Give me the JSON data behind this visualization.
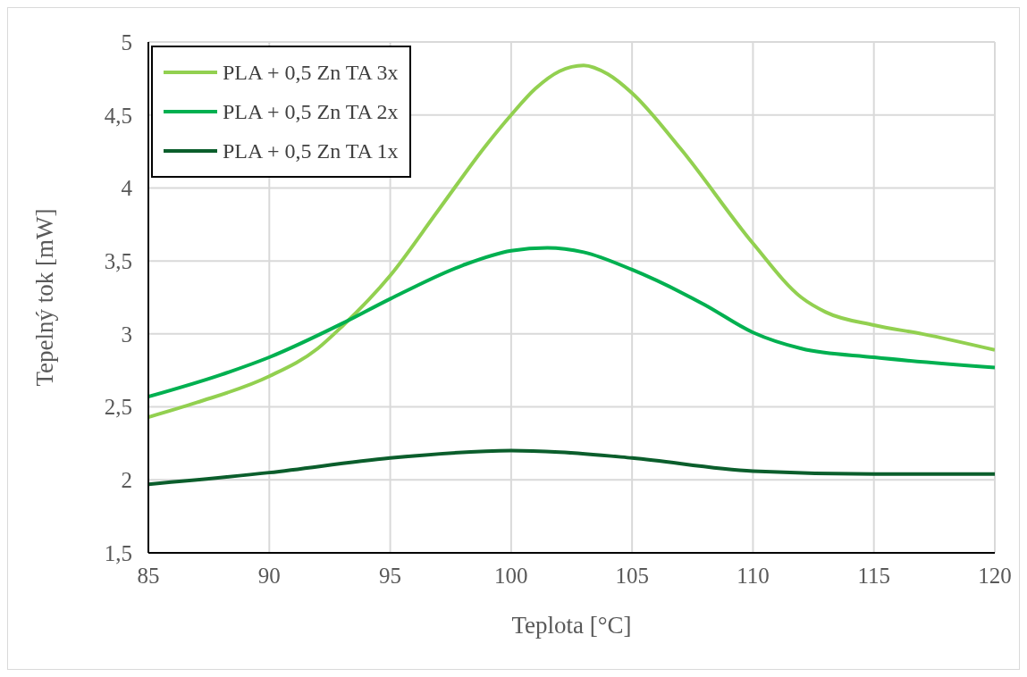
{
  "chart_data": {
    "type": "line",
    "xlabel": "Teplota [°C]",
    "ylabel": "Tepelný tok [mW]",
    "xlim": [
      85,
      120
    ],
    "xticks": [
      85,
      90,
      95,
      100,
      105,
      110,
      115,
      120
    ],
    "ylim": [
      1.5,
      5
    ],
    "yticks": [
      {
        "value": 1.5,
        "label": "1,5"
      },
      2,
      {
        "value": 2.5,
        "label": "2,5"
      },
      3,
      {
        "value": 3.5,
        "label": "3,5"
      },
      4,
      {
        "value": 4.5,
        "label": "4,5"
      },
      5
    ],
    "grid": true,
    "legend": "top left",
    "marker": "none",
    "line_style": "solid",
    "series": [
      {
        "name": "PLA + 0,5 Zn TA 3x",
        "color": "#92d050",
        "x": [
          85,
          87,
          90,
          92,
          93,
          95,
          97,
          99,
          100,
          101,
          102,
          103,
          104,
          105,
          107,
          110,
          112,
          113,
          115,
          117,
          120
        ],
        "values": [
          2.43,
          2.53,
          2.71,
          2.9,
          3.05,
          3.4,
          3.85,
          4.3,
          4.5,
          4.68,
          4.8,
          4.84,
          4.78,
          4.65,
          4.27,
          3.62,
          3.25,
          3.15,
          3.06,
          3.0,
          2.89
        ]
      },
      {
        "name": "PLA + 0,5 Zn TA 2x",
        "color": "#00b050",
        "x": [
          85,
          88,
          90,
          93,
          95,
          98,
          100,
          101.5,
          103,
          105,
          108,
          110,
          112,
          115,
          120
        ],
        "values": [
          2.57,
          2.72,
          2.84,
          3.07,
          3.24,
          3.47,
          3.57,
          3.59,
          3.56,
          3.44,
          3.2,
          3.01,
          2.9,
          2.84,
          2.77
        ]
      },
      {
        "name": "PLA + 0,5 Zn TA 1x",
        "color": "#0b5e2c",
        "x": [
          85,
          90,
          95,
          100,
          102,
          105,
          110,
          115,
          120
        ],
        "values": [
          1.97,
          2.05,
          2.15,
          2.2,
          2.19,
          2.15,
          2.06,
          2.04,
          2.04
        ]
      }
    ]
  }
}
